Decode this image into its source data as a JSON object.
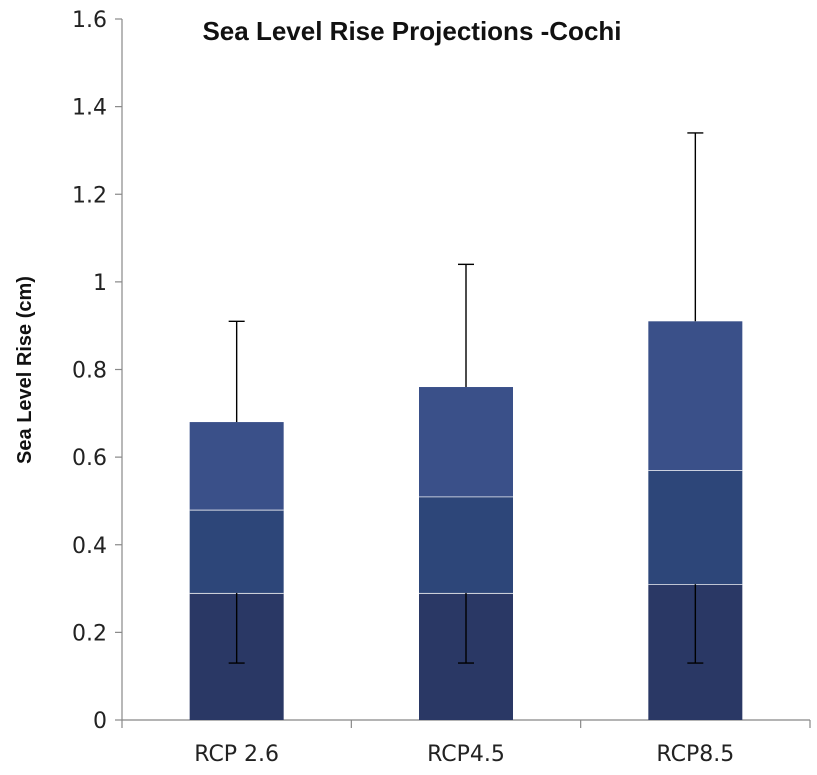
{
  "chart_data": {
    "type": "bar",
    "stacked": true,
    "title": "Sea Level Rise Projections -Cochi",
    "xlabel": "",
    "ylabel": "Sea Level Rise (cm)",
    "ylim": [
      0,
      1.6
    ],
    "yticks": [
      "0",
      "0.2",
      "0.4",
      "0.6",
      "0.8",
      "1",
      "1.2",
      "1.4",
      "1.6"
    ],
    "categories": [
      "RCP 2.6",
      "RCP4.5",
      "RCP8.5"
    ],
    "segments": [
      {
        "values": [
          0.29,
          0.29,
          0.31
        ],
        "color": "#2a3865"
      },
      {
        "values": [
          0.19,
          0.22,
          0.26
        ],
        "color": "#2d4679"
      },
      {
        "values": [
          0.2,
          0.25,
          0.34
        ],
        "color": "#3a5089"
      }
    ],
    "error_low": [
      0.13,
      0.13,
      0.13
    ],
    "error_high": [
      0.91,
      1.04,
      1.34
    ],
    "grid": false,
    "legend": "none",
    "axis_color": "#888888",
    "segment_separator_color": "#ffffff"
  }
}
